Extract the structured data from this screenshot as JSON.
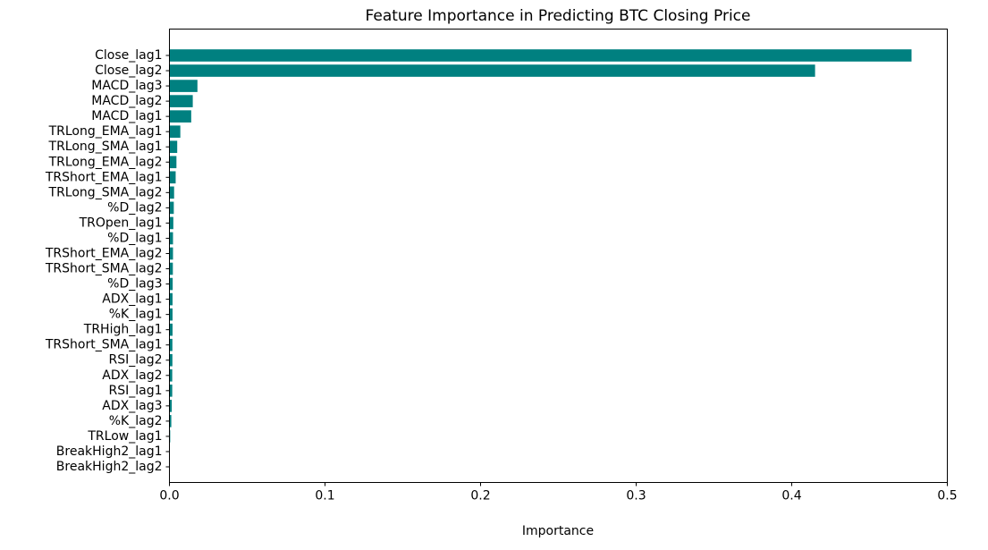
{
  "chart_data": {
    "type": "bar",
    "orientation": "horizontal",
    "title": "Feature Importance in Predicting BTC Closing Price",
    "xlabel": "Importance",
    "ylabel": "",
    "xlim": [
      0,
      0.5
    ],
    "xticks": [
      0.0,
      0.1,
      0.2,
      0.3,
      0.4,
      0.5
    ],
    "xtick_labels": [
      "0.0",
      "0.1",
      "0.2",
      "0.3",
      "0.4",
      "0.5"
    ],
    "grid": false,
    "bar_color": "#008080",
    "categories": [
      "Close_lag1",
      "Close_lag2",
      "MACD_lag3",
      "MACD_lag2",
      "MACD_lag1",
      "TRLong_EMA_lag1",
      "TRLong_SMA_lag1",
      "TRLong_EMA_lag2",
      "TRShort_EMA_lag1",
      "TRLong_SMA_lag2",
      "%D_lag2",
      "TROpen_lag1",
      "%D_lag1",
      "TRShort_EMA_lag2",
      "TRShort_SMA_lag2",
      "%D_lag3",
      "ADX_lag1",
      "%K_lag1",
      "TRHigh_lag1",
      "TRShort_SMA_lag1",
      "RSI_lag2",
      "ADX_lag2",
      "RSI_lag1",
      "ADX_lag3",
      "%K_lag2",
      "TRLow_lag1",
      "BreakHigh2_lag1",
      "BreakHigh2_lag2"
    ],
    "values": [
      0.477,
      0.415,
      0.018,
      0.015,
      0.014,
      0.007,
      0.005,
      0.0045,
      0.004,
      0.003,
      0.0028,
      0.0025,
      0.0023,
      0.0023,
      0.0022,
      0.0021,
      0.002,
      0.002,
      0.002,
      0.0019,
      0.0019,
      0.0018,
      0.0018,
      0.0015,
      0.0012,
      0.0005,
      0.0002,
      0.0001
    ]
  }
}
